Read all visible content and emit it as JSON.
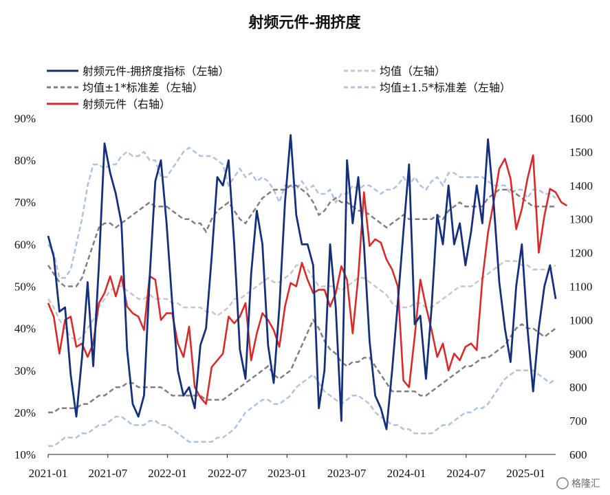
{
  "chart_data": {
    "type": "line",
    "title": "射频元件-拥挤度",
    "x_ticks": [
      "2021-01",
      "2021-07",
      "2022-01",
      "2022-07",
      "2023-01",
      "2023-07",
      "2024-01",
      "2024-07",
      "2025-01"
    ],
    "y_left": {
      "ylim": [
        0.1,
        0.9
      ],
      "ticks": [
        "10%",
        "20%",
        "30%",
        "40%",
        "50%",
        "60%",
        "70%",
        "80%",
        "90%"
      ]
    },
    "y_right": {
      "ylim": [
        600,
        1600
      ],
      "ticks": [
        "600",
        "700",
        "800",
        "900",
        "1000",
        "1100",
        "1200",
        "1300",
        "1400",
        "1500",
        "1600"
      ]
    },
    "legend": [
      {
        "label": "射频元件-拥挤度指标（左轴）",
        "color": "#14307c",
        "style": "solid"
      },
      {
        "label": "均值（左轴）",
        "color": "#c7c7c7",
        "style": "dashed"
      },
      {
        "label": "均值±1*标准差（左轴）",
        "color": "#7f7f7f",
        "style": "dashed"
      },
      {
        "label": "均值±1.5*标准差（左轴）",
        "color": "#aec3e0",
        "style": "dashed"
      },
      {
        "label": "射频元件（右轴）",
        "color": "#d92a2a",
        "style": "solid"
      }
    ],
    "x_start": "2021-01",
    "x_end": "2025-04",
    "series": [
      {
        "name": "射频元件-拥挤度指标（左轴）",
        "axis": "left",
        "color": "#14307c",
        "values": [
          0.62,
          0.57,
          0.44,
          0.45,
          0.29,
          0.19,
          0.33,
          0.51,
          0.31,
          0.55,
          0.84,
          0.77,
          0.72,
          0.65,
          0.35,
          0.22,
          0.19,
          0.24,
          0.52,
          0.75,
          0.8,
          0.65,
          0.46,
          0.3,
          0.24,
          0.26,
          0.21,
          0.36,
          0.4,
          0.57,
          0.76,
          0.74,
          0.8,
          0.6,
          0.35,
          0.28,
          0.53,
          0.68,
          0.6,
          0.36,
          0.27,
          0.45,
          0.7,
          0.86,
          0.67,
          0.6,
          0.6,
          0.55,
          0.21,
          0.3,
          0.6,
          0.45,
          0.18,
          0.8,
          0.65,
          0.76,
          0.6,
          0.37,
          0.24,
          0.21,
          0.16,
          0.3,
          0.46,
          0.63,
          0.79,
          0.41,
          0.43,
          0.28,
          0.45,
          0.67,
          0.6,
          0.74,
          0.6,
          0.65,
          0.55,
          0.63,
          0.74,
          0.65,
          0.85,
          0.7,
          0.51,
          0.4,
          0.32,
          0.5,
          0.6,
          0.4,
          0.25,
          0.4,
          0.5,
          0.55,
          0.47
        ]
      },
      {
        "name": "射频元件（右轴）",
        "axis": "right",
        "color": "#d92a2a",
        "values": [
          1050,
          1010,
          900,
          1000,
          1010,
          920,
          930,
          890,
          930,
          1050,
          1080,
          1130,
          1070,
          1130,
          1040,
          1020,
          1010,
          970,
          1130,
          1120,
          1000,
          1020,
          1020,
          930,
          890,
          980,
          800,
          770,
          750,
          860,
          880,
          900,
          1010,
          990,
          1010,
          1050,
          880,
          960,
          1020,
          1000,
          970,
          920,
          1040,
          1110,
          1100,
          1170,
          1120,
          1080,
          1090,
          1090,
          1040,
          1080,
          1160,
          1120,
          960,
          1130,
          1380,
          1220,
          1240,
          1230,
          1180,
          1150,
          1100,
          820,
          800,
          950,
          1120,
          1040,
          970,
          890,
          930,
          850,
          900,
          880,
          920,
          930,
          910,
          1120,
          1260,
          1350,
          1450,
          1480,
          1420,
          1270,
          1330,
          1420,
          1490,
          1200,
          1310,
          1390,
          1380,
          1350,
          1340
        ]
      }
    ],
    "bands": [
      {
        "name": "均值±1.5*标准差（左轴）",
        "color": "#aec3e0",
        "values": [
          0.6,
          0.58,
          0.52,
          0.52,
          0.54,
          0.6,
          0.66,
          0.74,
          0.79,
          0.79,
          0.78,
          0.79,
          0.79,
          0.81,
          0.82,
          0.81,
          0.81,
          0.82,
          0.8,
          0.8,
          0.76,
          0.76,
          0.78,
          0.8,
          0.82,
          0.83,
          0.82,
          0.81,
          0.81,
          0.81,
          0.8,
          0.79,
          0.74,
          0.76,
          0.78,
          0.76,
          0.77,
          0.75,
          0.76,
          0.75,
          0.73,
          0.7,
          0.74,
          0.74,
          0.73,
          0.75,
          0.73,
          0.74,
          0.72,
          0.72,
          0.73,
          0.7,
          0.72,
          0.72,
          0.74,
          0.73,
          0.74,
          0.74,
          0.73,
          0.72,
          0.73,
          0.73,
          0.74,
          0.76,
          0.74,
          0.76,
          0.74,
          0.73,
          0.75,
          0.76,
          0.74,
          0.77,
          0.77,
          0.76,
          0.76,
          0.76,
          0.76,
          0.76,
          0.75,
          0.74,
          0.74,
          0.74,
          0.72,
          0.73,
          0.73,
          0.71,
          0.73,
          0.73,
          0.72,
          0.72,
          0.71
        ]
      },
      {
        "name": "均值±1*标准差（左轴）",
        "color": "#7f7f7f",
        "values": [
          0.55,
          0.53,
          0.51,
          0.5,
          0.5,
          0.5,
          0.52,
          0.56,
          0.6,
          0.64,
          0.65,
          0.65,
          0.64,
          0.65,
          0.66,
          0.67,
          0.68,
          0.69,
          0.7,
          0.69,
          0.69,
          0.69,
          0.68,
          0.67,
          0.66,
          0.66,
          0.65,
          0.65,
          0.63,
          0.66,
          0.68,
          0.69,
          0.7,
          0.68,
          0.66,
          0.65,
          0.67,
          0.69,
          0.71,
          0.72,
          0.73,
          0.73,
          0.73,
          0.74,
          0.74,
          0.73,
          0.72,
          0.7,
          0.67,
          0.68,
          0.7,
          0.71,
          0.7,
          0.7,
          0.69,
          0.68,
          0.68,
          0.67,
          0.66,
          0.65,
          0.64,
          0.65,
          0.66,
          0.67,
          0.66,
          0.66,
          0.66,
          0.66,
          0.66,
          0.67,
          0.66,
          0.68,
          0.69,
          0.7,
          0.69,
          0.69,
          0.69,
          0.69,
          0.71,
          0.72,
          0.73,
          0.73,
          0.73,
          0.72,
          0.71,
          0.7,
          0.69,
          0.69,
          0.69,
          0.69,
          0.69
        ]
      },
      {
        "name": "均值（左轴）",
        "color": "#c7c7c7",
        "values": [
          0.47,
          0.45,
          0.42,
          0.4,
          0.38,
          0.37,
          0.38,
          0.4,
          0.42,
          0.45,
          0.47,
          0.49,
          0.5,
          0.5,
          0.49,
          0.48,
          0.47,
          0.47,
          0.48,
          0.47,
          0.47,
          0.47,
          0.46,
          0.46,
          0.45,
          0.45,
          0.45,
          0.45,
          0.44,
          0.44,
          0.43,
          0.44,
          0.45,
          0.47,
          0.47,
          0.48,
          0.49,
          0.5,
          0.51,
          0.52,
          0.51,
          0.51,
          0.52,
          0.53,
          0.55,
          0.55,
          0.54,
          0.52,
          0.5,
          0.5,
          0.5,
          0.5,
          0.49,
          0.5,
          0.51,
          0.52,
          0.52,
          0.51,
          0.5,
          0.49,
          0.48,
          0.46,
          0.45,
          0.45,
          0.45,
          0.46,
          0.46,
          0.45,
          0.45,
          0.46,
          0.47,
          0.48,
          0.49,
          0.5,
          0.5,
          0.5,
          0.51,
          0.52,
          0.53,
          0.54,
          0.55,
          0.56,
          0.56,
          0.56,
          0.55,
          0.55,
          0.54,
          0.54,
          0.54,
          0.54,
          0.55
        ]
      },
      {
        "name": "均值±1*标准差（左轴）",
        "color": "#7f7f7f",
        "values": [
          0.2,
          0.2,
          0.21,
          0.21,
          0.21,
          0.21,
          0.22,
          0.22,
          0.23,
          0.24,
          0.24,
          0.25,
          0.26,
          0.26,
          0.27,
          0.27,
          0.26,
          0.26,
          0.26,
          0.26,
          0.26,
          0.25,
          0.24,
          0.24,
          0.24,
          0.24,
          0.24,
          0.24,
          0.23,
          0.23,
          0.23,
          0.23,
          0.24,
          0.25,
          0.26,
          0.27,
          0.28,
          0.29,
          0.3,
          0.31,
          0.29,
          0.28,
          0.29,
          0.3,
          0.33,
          0.36,
          0.39,
          0.42,
          0.4,
          0.37,
          0.35,
          0.34,
          0.32,
          0.31,
          0.32,
          0.32,
          0.33,
          0.33,
          0.31,
          0.29,
          0.27,
          0.25,
          0.25,
          0.25,
          0.25,
          0.25,
          0.24,
          0.24,
          0.25,
          0.26,
          0.27,
          0.28,
          0.29,
          0.3,
          0.31,
          0.31,
          0.32,
          0.33,
          0.33,
          0.34,
          0.35,
          0.36,
          0.38,
          0.4,
          0.41,
          0.4,
          0.4,
          0.39,
          0.38,
          0.39,
          0.4
        ]
      },
      {
        "name": "均值±1.5*标准差（左轴）",
        "color": "#aec3e0",
        "values": [
          0.12,
          0.12,
          0.13,
          0.14,
          0.14,
          0.14,
          0.15,
          0.15,
          0.16,
          0.17,
          0.17,
          0.18,
          0.19,
          0.19,
          0.18,
          0.17,
          0.17,
          0.17,
          0.18,
          0.18,
          0.17,
          0.17,
          0.16,
          0.15,
          0.14,
          0.13,
          0.13,
          0.13,
          0.13,
          0.13,
          0.14,
          0.14,
          0.15,
          0.16,
          0.18,
          0.2,
          0.21,
          0.22,
          0.23,
          0.23,
          0.22,
          0.22,
          0.23,
          0.24,
          0.26,
          0.27,
          0.28,
          0.29,
          0.27,
          0.25,
          0.24,
          0.23,
          0.22,
          0.23,
          0.24,
          0.24,
          0.23,
          0.22,
          0.2,
          0.19,
          0.18,
          0.17,
          0.17,
          0.16,
          0.16,
          0.15,
          0.15,
          0.15,
          0.15,
          0.16,
          0.17,
          0.17,
          0.18,
          0.19,
          0.2,
          0.2,
          0.21,
          0.21,
          0.22,
          0.24,
          0.26,
          0.28,
          0.29,
          0.3,
          0.3,
          0.3,
          0.3,
          0.29,
          0.28,
          0.27,
          0.28
        ]
      }
    ]
  },
  "watermark": "格隆汇"
}
